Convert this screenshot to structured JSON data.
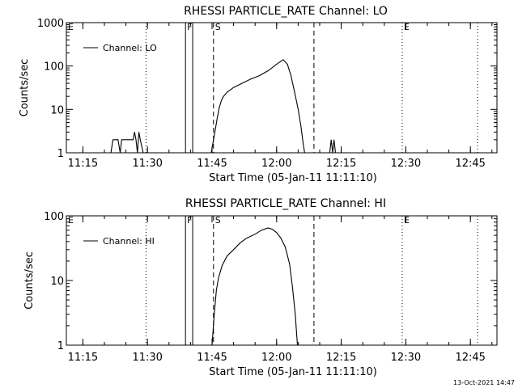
{
  "footer_timestamp": "13-Oct-2021 14:47",
  "chart_data": [
    {
      "type": "line",
      "title": "RHESSI PARTICLE_RATE Channel: LO",
      "xlabel": "Start Time (05-Jan-11 11:11:10)",
      "ylabel": "Counts/sec",
      "y_scale": "log",
      "ylim": [
        1,
        1000
      ],
      "xlim": [
        "11:11:10",
        "12:51:10"
      ],
      "x_ticks": [
        "11:15",
        "11:30",
        "11:45",
        "12:00",
        "12:15",
        "12:30",
        "12:45"
      ],
      "y_ticks": [
        "1",
        "10",
        "100",
        "1000"
      ],
      "legend": "Channel: LO",
      "legend_position": "top-left",
      "markers": [
        {
          "label": "E",
          "time": "11:11:10",
          "style": "none"
        },
        {
          "label": "",
          "time": "11:29:40",
          "style": "dotted"
        },
        {
          "label": "F",
          "time": "11:38:50",
          "style": "solid"
        },
        {
          "label": "",
          "time": "11:40:30",
          "style": "solid"
        },
        {
          "label": "S",
          "time": "11:45:20",
          "style": "dashed"
        },
        {
          "label": "",
          "time": "12:08:40",
          "style": "dashed"
        },
        {
          "label": "E",
          "time": "12:29:10",
          "style": "dotted"
        },
        {
          "label": "",
          "time": "12:46:40",
          "style": "dotted"
        }
      ],
      "series": [
        {
          "name": "Channel: LO",
          "segments": [
            [
              [
                "11:21:30",
                1
              ],
              [
                "11:22:00",
                2
              ],
              [
                "11:23:10",
                2
              ],
              [
                "11:23:40",
                1
              ],
              [
                "11:24:00",
                2
              ],
              [
                "11:26:40",
                2
              ],
              [
                "11:27:00",
                3
              ],
              [
                "11:27:20",
                2
              ],
              [
                "11:27:40",
                1
              ],
              [
                "11:28:00",
                3
              ],
              [
                "11:28:20",
                2
              ],
              [
                "11:29:00",
                1
              ]
            ],
            [
              [
                "11:44:50",
                1
              ],
              [
                "11:45:10",
                1.6
              ],
              [
                "11:45:40",
                3
              ],
              [
                "11:46:10",
                6
              ],
              [
                "11:46:40",
                11
              ],
              [
                "11:47:10",
                16
              ],
              [
                "11:47:40",
                20
              ],
              [
                "11:48:30",
                25
              ],
              [
                "11:50:00",
                32
              ],
              [
                "11:52:00",
                40
              ],
              [
                "11:54:00",
                50
              ],
              [
                "11:56:00",
                60
              ],
              [
                "11:58:00",
                78
              ],
              [
                "12:00:00",
                110
              ],
              [
                "12:01:30",
                140
              ],
              [
                "12:02:30",
                110
              ],
              [
                "12:03:20",
                60
              ],
              [
                "12:04:10",
                25
              ],
              [
                "12:05:00",
                10
              ],
              [
                "12:05:40",
                4
              ],
              [
                "12:06:10",
                1.6
              ],
              [
                "12:06:30",
                1
              ]
            ],
            [
              [
                "12:12:20",
                1
              ],
              [
                "12:12:40",
                2
              ],
              [
                "12:13:00",
                1
              ],
              [
                "12:13:20",
                2
              ],
              [
                "12:13:40",
                1
              ]
            ]
          ]
        }
      ]
    },
    {
      "type": "line",
      "title": "RHESSI PARTICLE_RATE Channel: HI",
      "xlabel": "Start Time (05-Jan-11 11:11:10)",
      "ylabel": "Counts/sec",
      "y_scale": "log",
      "ylim": [
        1,
        100
      ],
      "xlim": [
        "11:11:10",
        "12:51:10"
      ],
      "x_ticks": [
        "11:15",
        "11:30",
        "11:45",
        "12:00",
        "12:15",
        "12:30",
        "12:45"
      ],
      "y_ticks": [
        "1",
        "10",
        "100"
      ],
      "legend": "Channel: HI",
      "legend_position": "top-left",
      "markers": [
        {
          "label": "E",
          "time": "11:11:10",
          "style": "none"
        },
        {
          "label": "",
          "time": "11:29:40",
          "style": "dotted"
        },
        {
          "label": "F",
          "time": "11:38:50",
          "style": "solid"
        },
        {
          "label": "",
          "time": "11:40:30",
          "style": "solid"
        },
        {
          "label": "S",
          "time": "11:45:20",
          "style": "dashed"
        },
        {
          "label": "",
          "time": "12:08:40",
          "style": "dashed"
        },
        {
          "label": "E",
          "time": "12:29:10",
          "style": "dotted"
        },
        {
          "label": "",
          "time": "12:46:40",
          "style": "dotted"
        }
      ],
      "series": [
        {
          "name": "Channel: HI",
          "segments": [
            [
              [
                "11:45:00",
                1
              ],
              [
                "11:45:30",
                3
              ],
              [
                "11:46:00",
                7
              ],
              [
                "11:46:30",
                11
              ],
              [
                "11:47:20",
                17
              ],
              [
                "11:48:30",
                24
              ],
              [
                "11:50:00",
                30
              ],
              [
                "11:51:30",
                38
              ],
              [
                "11:53:00",
                45
              ],
              [
                "11:55:00",
                52
              ],
              [
                "11:56:30",
                60
              ],
              [
                "11:58:00",
                65
              ],
              [
                "11:59:00",
                62
              ],
              [
                "12:00:00",
                55
              ],
              [
                "12:01:00",
                45
              ],
              [
                "12:02:00",
                33
              ],
              [
                "12:03:00",
                18
              ],
              [
                "12:03:40",
                8
              ],
              [
                "12:04:20",
                3
              ],
              [
                "12:04:50",
                1
              ]
            ]
          ]
        }
      ]
    }
  ]
}
